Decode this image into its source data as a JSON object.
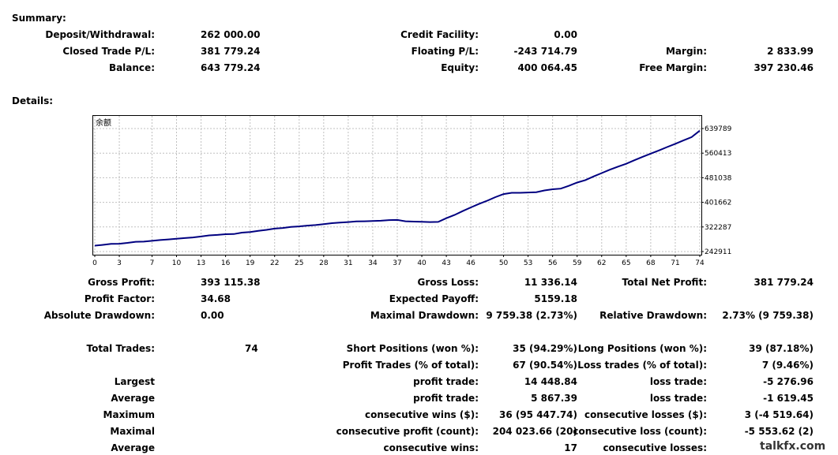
{
  "summary": {
    "title": "Summary:",
    "deposit_label": "Deposit/Withdrawal:",
    "deposit_value": "262 000.00",
    "credit_label": "Credit Facility:",
    "credit_value": "0.00",
    "closed_label": "Closed Trade P/L:",
    "closed_value": "381 779.24",
    "floating_label": "Floating P/L:",
    "floating_value": "-243 714.79",
    "margin_label": "Margin:",
    "margin_value": "2 833.99",
    "balance_label": "Balance:",
    "balance_value": "643 779.24",
    "equity_label": "Equity:",
    "equity_value": "400 064.45",
    "free_margin_label": "Free Margin:",
    "free_margin_value": "397 230.46"
  },
  "details": {
    "title": "Details:"
  },
  "chart_data": {
    "type": "line",
    "title": "余额",
    "x_ticks": [
      "0",
      "3",
      "7",
      "10",
      "13",
      "16",
      "19",
      "22",
      "25",
      "28",
      "31",
      "34",
      "37",
      "40",
      "43",
      "46",
      "50",
      "53",
      "56",
      "59",
      "62",
      "65",
      "68",
      "71",
      "74"
    ],
    "y_ticks": [
      "639789",
      "560413",
      "481038",
      "401662",
      "322287",
      "242911"
    ],
    "ylim": [
      242911,
      639789
    ],
    "xlim": [
      0,
      74
    ],
    "grid": true,
    "color": "#000080",
    "series": [
      {
        "x": [
          0,
          1,
          2,
          3,
          4,
          5,
          6,
          7,
          8,
          9,
          10,
          11,
          12,
          13,
          14,
          15,
          16,
          17,
          18,
          19,
          20,
          21,
          22,
          23,
          24,
          25,
          26,
          27,
          28,
          29,
          30,
          31,
          32,
          33,
          34,
          35,
          36,
          37,
          38,
          39,
          40,
          41,
          42,
          43,
          44,
          45,
          46,
          47,
          48,
          49,
          50,
          51,
          52,
          53,
          54,
          55,
          56,
          57,
          58,
          59,
          60,
          61,
          62,
          63,
          64,
          65,
          66,
          67,
          68,
          69,
          70,
          71,
          72,
          73,
          74
        ],
        "y": [
          262000,
          264500,
          267500,
          268000,
          271000,
          274500,
          275000,
          277500,
          280000,
          282000,
          284500,
          286500,
          288500,
          291500,
          295000,
          296500,
          299000,
          299500,
          304000,
          306000,
          309500,
          313000,
          317000,
          319000,
          322500,
          324000,
          326500,
          328500,
          331500,
          334500,
          336500,
          338000,
          340000,
          340500,
          341500,
          342500,
          344500,
          345000,
          340500,
          339500,
          339000,
          338000,
          338500,
          350500,
          361000,
          373500,
          385500,
          396500,
          407000,
          418500,
          428500,
          432500,
          432500,
          433500,
          434500,
          440000,
          444000,
          446000,
          455000,
          465500,
          473500,
          485000,
          496000,
          507000,
          517000,
          526000,
          537500,
          548500,
          559000,
          569000,
          580000,
          590500,
          601500,
          612000,
          633000
        ]
      }
    ]
  },
  "stats": {
    "gross_profit_label": "Gross Profit:",
    "gross_profit_value": "393 115.38",
    "gross_loss_label": "Gross Loss:",
    "gross_loss_value": "11 336.14",
    "total_net_label": "Total Net Profit:",
    "total_net_value": "381 779.24",
    "profit_factor_label": "Profit Factor:",
    "profit_factor_value": "34.68",
    "expected_payoff_label": "Expected Payoff:",
    "expected_payoff_value": "5159.18",
    "abs_dd_label": "Absolute Drawdown:",
    "abs_dd_value": "0.00",
    "max_dd_label": "Maximal Drawdown:",
    "max_dd_value": "9 759.38 (2.73%)",
    "rel_dd_label": "Relative Drawdown:",
    "rel_dd_value": "2.73% (9 759.38)",
    "total_trades_label": "Total Trades:",
    "total_trades_value": "74",
    "short_label": "Short Positions (won %):",
    "short_value": "35 (94.29%)",
    "long_label": "Long Positions (won %):",
    "long_value": "39 (87.18%)",
    "profit_trades_label": "Profit Trades (% of total):",
    "profit_trades_value": "67 (90.54%)",
    "loss_trades_label": "Loss trades (% of total):",
    "loss_trades_value": "7 (9.46%)",
    "largest_label": "Largest",
    "largest_profit_label": "profit trade:",
    "largest_profit_value": "14 448.84",
    "largest_loss_label": "loss trade:",
    "largest_loss_value": "-5 276.96",
    "average_label": "Average",
    "average_profit_label": "profit trade:",
    "average_profit_value": "5 867.39",
    "average_loss_label": "loss trade:",
    "average_loss_value": "-1 619.45",
    "maximum_label": "Maximum",
    "max_wins_label": "consecutive wins ($):",
    "max_wins_value": "36 (95 447.74)",
    "max_losses_label": "consecutive losses ($):",
    "max_losses_value": "3 (-4 519.64)",
    "maximal_label": "Maximal",
    "maximal_profit_label": "consecutive profit (count):",
    "maximal_profit_value": "204 023.66 (20)",
    "maximal_loss_label": "consecutive loss (count):",
    "maximal_loss_value": "-5 553.62 (2)",
    "avg_consec_label": "Average",
    "avg_wins_label": "consecutive wins:",
    "avg_wins_value": "17",
    "avg_losses_label": "consecutive losses:"
  },
  "watermark": "talkfx.com"
}
